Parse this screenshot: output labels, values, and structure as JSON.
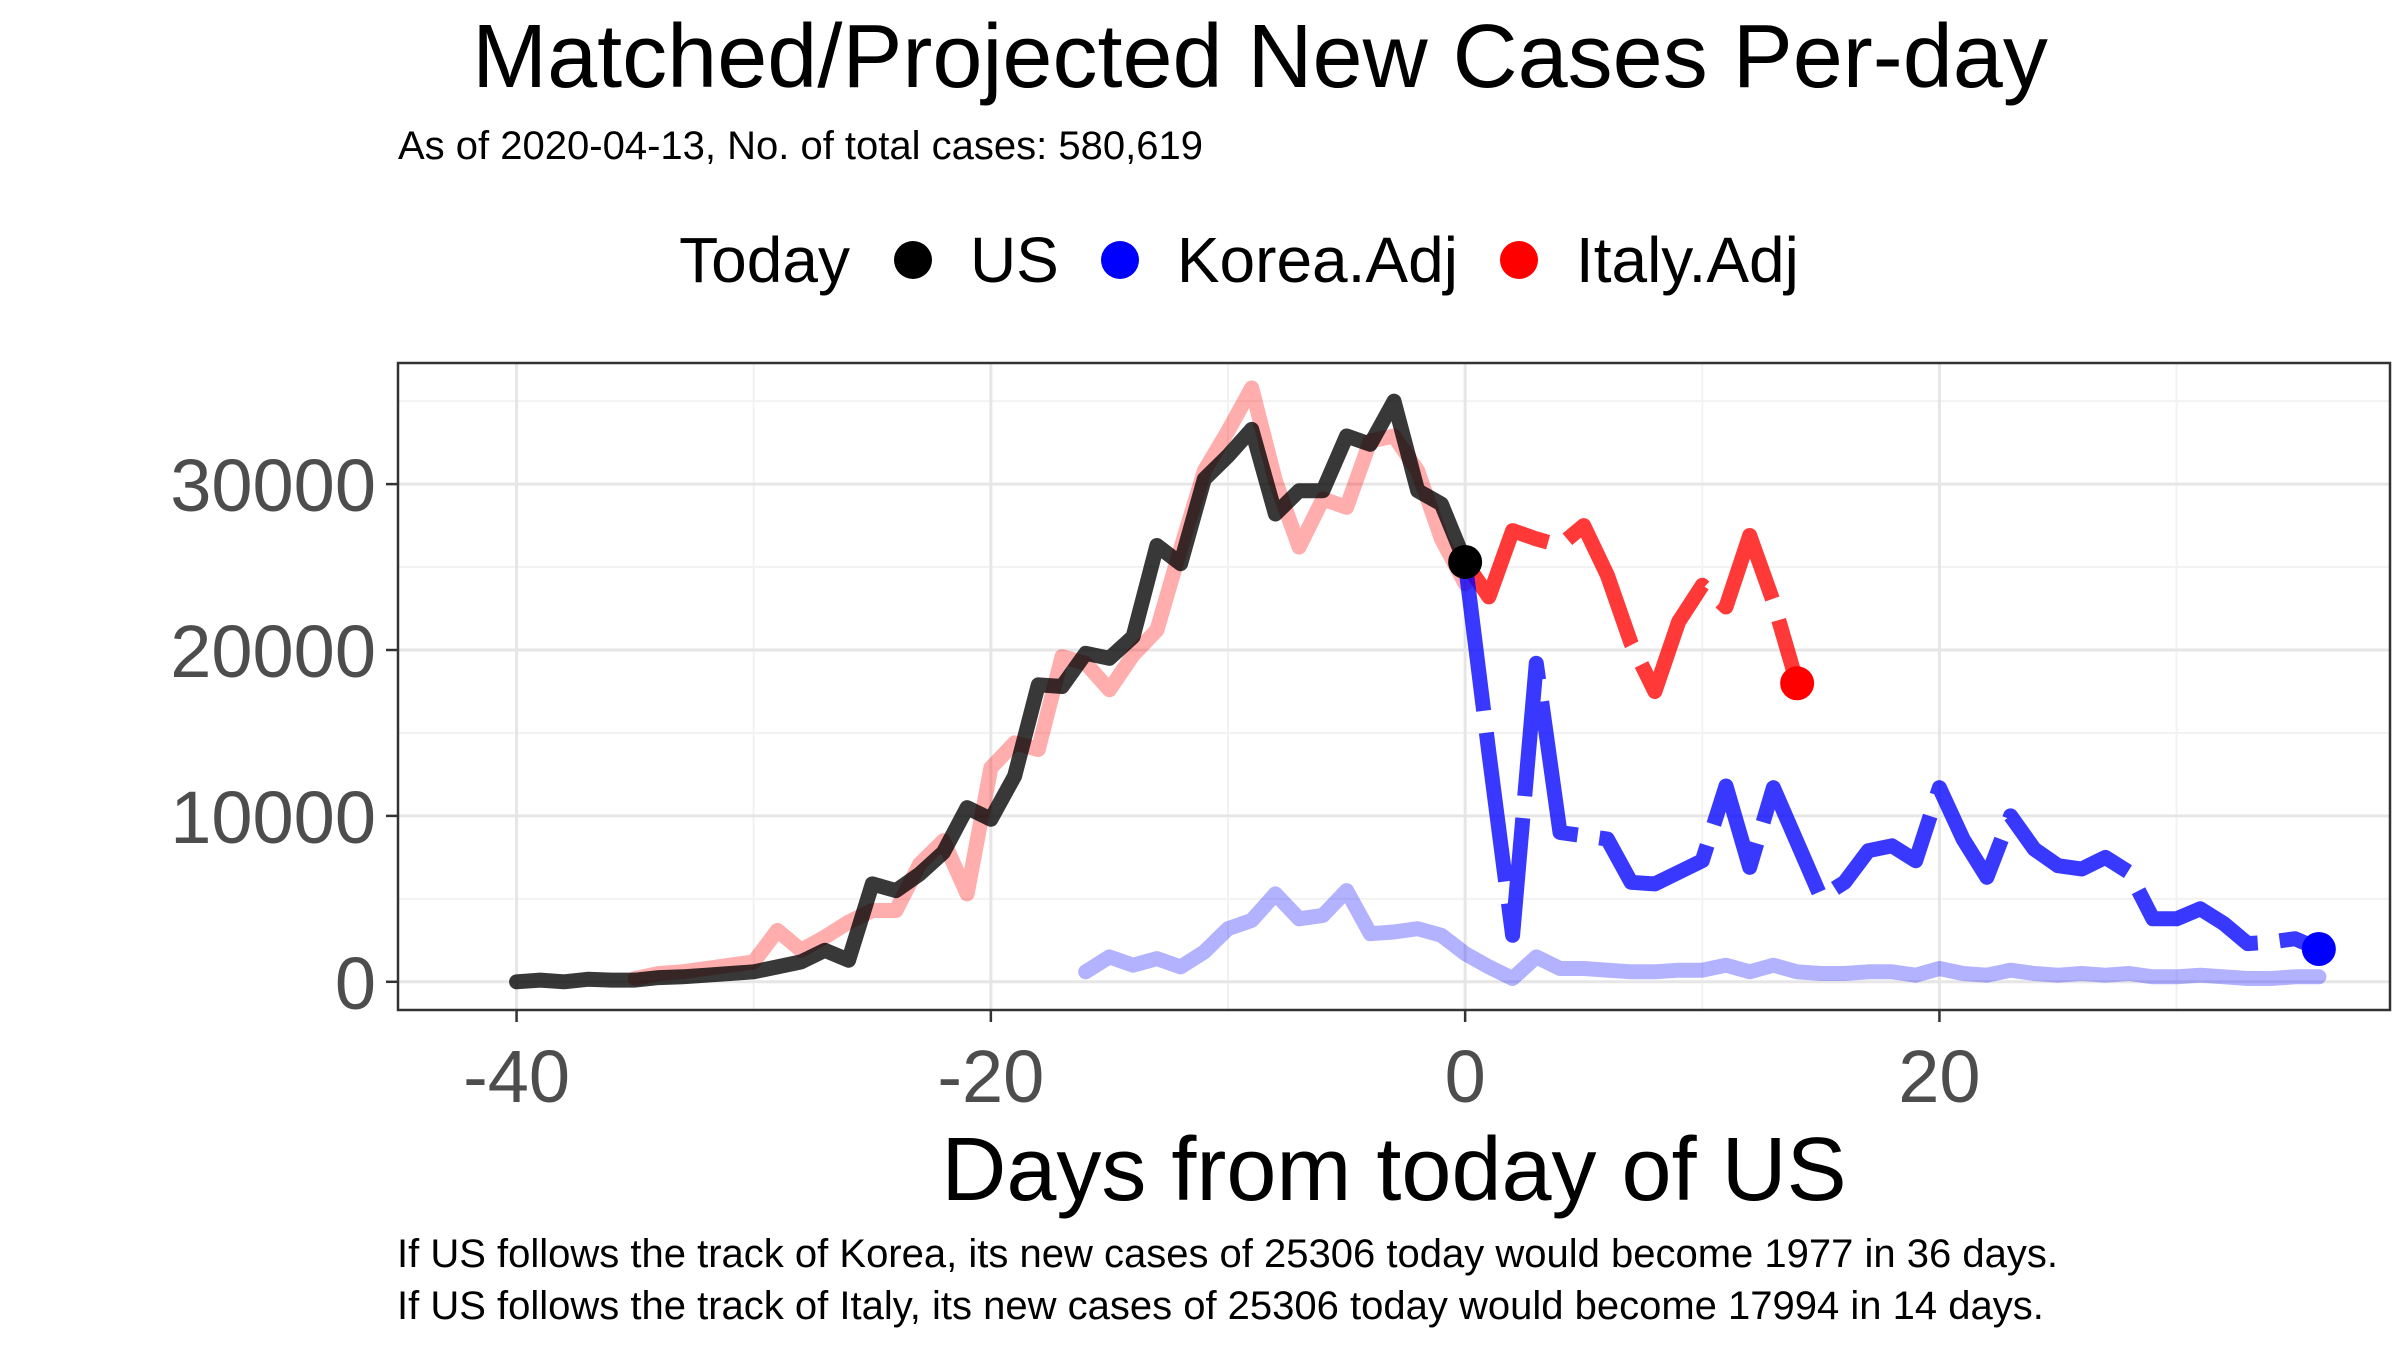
{
  "title": "Matched/Projected New Cases Per-day",
  "subtitle": "As of 2020-04-13, No. of total cases: 580,619",
  "legend": {
    "title": "Today",
    "items": [
      {
        "label": "US",
        "color": "#000000"
      },
      {
        "label": "Korea.Adj",
        "color": "#0000ff"
      },
      {
        "label": "Italy.Adj",
        "color": "#ff0000"
      }
    ]
  },
  "captions": [
    "If US follows the track of Korea, its new cases of 25306 today would become 1977 in 36 days.",
    "If US follows the track of Italy, its new cases of 25306 today would become 17994 in 14 days."
  ],
  "chart_data": {
    "type": "line",
    "xlabel": "Days from today of US",
    "ylabel": "",
    "xlim": [
      -45,
      39
    ],
    "ylim": [
      -1700,
      37300
    ],
    "xticks": [
      -40,
      -20,
      0,
      20
    ],
    "xtick_labels": [
      "-40",
      "-20",
      "0",
      "20"
    ],
    "yticks": [
      0,
      10000,
      20000,
      30000
    ],
    "ytick_labels": [
      "0",
      "10000",
      "20000",
      "30000"
    ],
    "grid": true,
    "legend_position": "top",
    "series": [
      {
        "name": "US",
        "role": "actual",
        "color": "#000000",
        "x": [
          -40,
          -39,
          -38,
          -37,
          -36,
          -35,
          -34,
          -33,
          -32,
          -31,
          -30,
          -29,
          -28,
          -27,
          -26,
          -25,
          -24,
          -23,
          -22,
          -21,
          -20,
          -19,
          -18,
          -17,
          -16,
          -15,
          -14,
          -13,
          -12,
          -11,
          -10,
          -9,
          -8,
          -7,
          -6,
          -5,
          -4,
          -3,
          -2,
          -1,
          0
        ],
        "y": [
          0,
          100,
          0,
          150,
          100,
          100,
          250,
          300,
          400,
          500,
          600,
          900,
          1200,
          1900,
          1300,
          5900,
          5500,
          6500,
          7800,
          10500,
          9800,
          12400,
          17900,
          17800,
          19800,
          19500,
          20800,
          26300,
          25200,
          30300,
          31700,
          33300,
          28200,
          29600,
          29600,
          32900,
          32400,
          35000,
          29600,
          28800,
          25306
        ]
      },
      {
        "name": "Italy.Adj (matched)",
        "role": "matched",
        "color": "#ff0000",
        "x": [
          -35,
          -34,
          -33,
          -32,
          -31,
          -30,
          -29,
          -28,
          -27,
          -26,
          -25,
          -24,
          -23,
          -22,
          -21,
          -20,
          -19,
          -18,
          -17,
          -16,
          -15,
          -14,
          -13,
          -12,
          -11,
          -10,
          -9,
          -8,
          -7,
          -6,
          -5,
          -4,
          -3,
          -2,
          -1,
          0
        ],
        "y": [
          200,
          500,
          600,
          800,
          1000,
          1200,
          3100,
          1900,
          2700,
          3600,
          4300,
          4300,
          7100,
          8500,
          5300,
          12900,
          14400,
          14000,
          19600,
          19200,
          17600,
          19700,
          21200,
          26100,
          30800,
          33200,
          35800,
          30200,
          26200,
          29100,
          28600,
          32600,
          32900,
          30800,
          26700,
          24000
        ]
      },
      {
        "name": "Korea.Adj (matched)",
        "role": "matched",
        "color": "#0000ff",
        "x": [
          -16,
          -15,
          -14,
          -13,
          -12,
          -11,
          -10,
          -9,
          -8,
          -7,
          -6,
          -5,
          -4,
          -3,
          -2,
          -1,
          0,
          1,
          2,
          3,
          4,
          5,
          6,
          7,
          8,
          9,
          10,
          11,
          12,
          13,
          14,
          15,
          16,
          17,
          18,
          19,
          20,
          21,
          22,
          23,
          24,
          25,
          26,
          27,
          28,
          29,
          30,
          31,
          32,
          33,
          34,
          35,
          36
        ],
        "y": [
          600,
          1500,
          1000,
          1400,
          900,
          1800,
          3200,
          3700,
          5300,
          3800,
          4000,
          5500,
          2900,
          3000,
          3200,
          2800,
          1700,
          900,
          200,
          1500,
          800,
          800,
          700,
          600,
          600,
          700,
          700,
          1000,
          600,
          1000,
          600,
          500,
          500,
          600,
          600,
          400,
          800,
          500,
          400,
          700,
          500,
          400,
          500,
          400,
          500,
          300,
          300,
          400,
          300,
          200,
          200,
          300,
          300
        ]
      },
      {
        "name": "Italy.Adj (projected)",
        "role": "projected",
        "color": "#ff0000",
        "x": [
          0,
          1,
          2,
          3,
          4,
          5,
          6,
          7,
          8,
          9,
          10,
          11,
          12,
          13,
          14
        ],
        "y": [
          25306,
          23200,
          27200,
          26700,
          26300,
          27500,
          24500,
          20400,
          17500,
          21700,
          23900,
          22600,
          26900,
          22900,
          17994
        ]
      },
      {
        "name": "Korea.Adj (projected)",
        "role": "projected",
        "color": "#0000ff",
        "x": [
          0,
          1,
          2,
          3,
          4,
          5,
          6,
          7,
          8,
          9,
          10,
          11,
          12,
          13,
          14,
          15,
          16,
          17,
          18,
          19,
          20,
          21,
          22,
          23,
          24,
          25,
          26,
          27,
          28,
          29,
          30,
          31,
          32,
          33,
          34,
          35,
          36
        ],
        "y": [
          25306,
          13800,
          2800,
          19200,
          9000,
          8800,
          8600,
          6000,
          5900,
          6600,
          7300,
          11800,
          6900,
          11700,
          8400,
          5100,
          6000,
          7900,
          8200,
          7300,
          11700,
          8600,
          6300,
          10000,
          8000,
          7000,
          6800,
          7500,
          6600,
          3800,
          3800,
          4400,
          3500,
          2300,
          2400,
          2600,
          1977
        ]
      }
    ],
    "today_points": [
      {
        "series": "US",
        "x": 0,
        "y": 25306,
        "color": "#000000"
      },
      {
        "series": "Italy.Adj",
        "x": 14,
        "y": 17994,
        "color": "#ff0000"
      },
      {
        "series": "Korea.Adj",
        "x": 36,
        "y": 1977,
        "color": "#0000ff"
      }
    ]
  }
}
